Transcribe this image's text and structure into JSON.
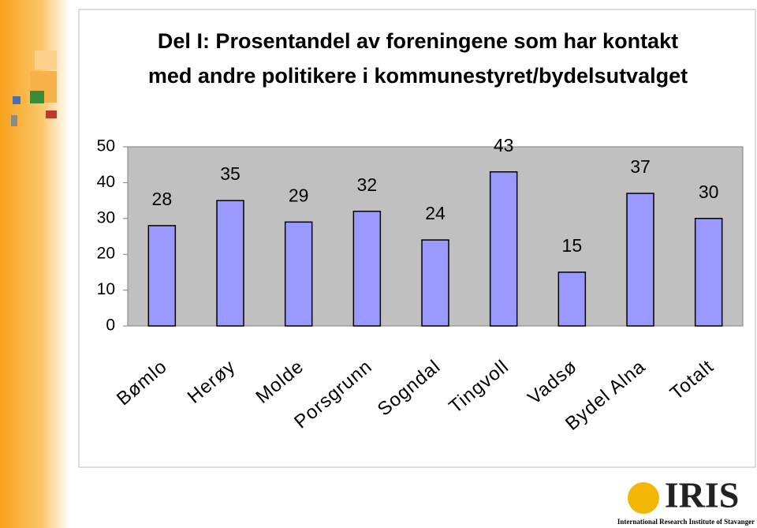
{
  "chart_data": {
    "type": "bar",
    "title": [
      "Del I: Prosentandel av foreningene som har kontakt",
      "med andre politikere i kommunestyret/bydelsutvalget"
    ],
    "categories": [
      "Bømlo",
      "Herøy",
      "Molde",
      "Porsgrunn",
      "Sogndal",
      "Tingvoll",
      "Vadsø",
      "Bydel Alna",
      "Totalt"
    ],
    "values": [
      28,
      35,
      29,
      32,
      24,
      43,
      15,
      37,
      30
    ],
    "color": "#9999ff",
    "ylim": [
      0,
      50
    ],
    "yticks": [
      0,
      10,
      20,
      30,
      40,
      50
    ],
    "grid": false
  },
  "logo": {
    "name": "IRIS",
    "subtitle": "International Research Institute of Stavanger"
  }
}
